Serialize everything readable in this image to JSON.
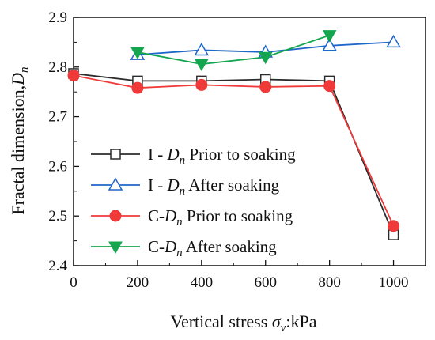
{
  "chart_data": {
    "type": "line",
    "title": "",
    "xlabel": {
      "main": "Vertical stress ",
      "symbol": "σ",
      "sub": "v",
      "tail": ":kPa"
    },
    "ylabel": {
      "main": "Fractal dimension,",
      "symbol": "D",
      "sub": "n"
    },
    "xlim": [
      0,
      1100
    ],
    "ylim": [
      2.4,
      2.9
    ],
    "xticks": [
      0,
      200,
      400,
      600,
      800,
      1000
    ],
    "yticks": [
      "2.4",
      "2.5",
      "2.6",
      "2.7",
      "2.8",
      "2.9"
    ],
    "legend_position": "center-left",
    "grid": false,
    "series": [
      {
        "name": "I - Dn Prior to soaking",
        "legend": {
          "prefix": "I - ",
          "symbol": "D",
          "sub": "n",
          "suffix": " Prior to soaking"
        },
        "color": "#2b2b2b",
        "marker": "square-open",
        "x": [
          0,
          200,
          400,
          600,
          800,
          1000
        ],
        "y": [
          2.787,
          2.772,
          2.772,
          2.775,
          2.772,
          2.462
        ]
      },
      {
        "name": "I - Dn After soaking",
        "legend": {
          "prefix": "I - ",
          "symbol": "D",
          "sub": "n",
          "suffix": " After soaking"
        },
        "color": "#1f66c9",
        "marker": "triangle-up-open",
        "x": [
          200,
          400,
          600,
          800,
          1000
        ],
        "y": [
          2.825,
          2.834,
          2.83,
          2.843,
          2.85
        ]
      },
      {
        "name": "C-Dn Prior to soaking",
        "legend": {
          "prefix": "C-",
          "symbol": "D",
          "sub": "n",
          "suffix": " Prior to soaking"
        },
        "color": "#f03a3a",
        "marker": "circle-filled",
        "x": [
          0,
          200,
          400,
          600,
          800,
          1000
        ],
        "y": [
          2.783,
          2.758,
          2.764,
          2.76,
          2.762,
          2.48
        ]
      },
      {
        "name": "C-Dn After soaking",
        "legend": {
          "prefix": "C-",
          "symbol": "D",
          "sub": "n",
          "suffix": " After soaking"
        },
        "color": "#13a64f",
        "marker": "triangle-down-filled",
        "x": [
          200,
          400,
          600,
          800
        ],
        "y": [
          2.83,
          2.806,
          2.82,
          2.864
        ]
      }
    ]
  }
}
